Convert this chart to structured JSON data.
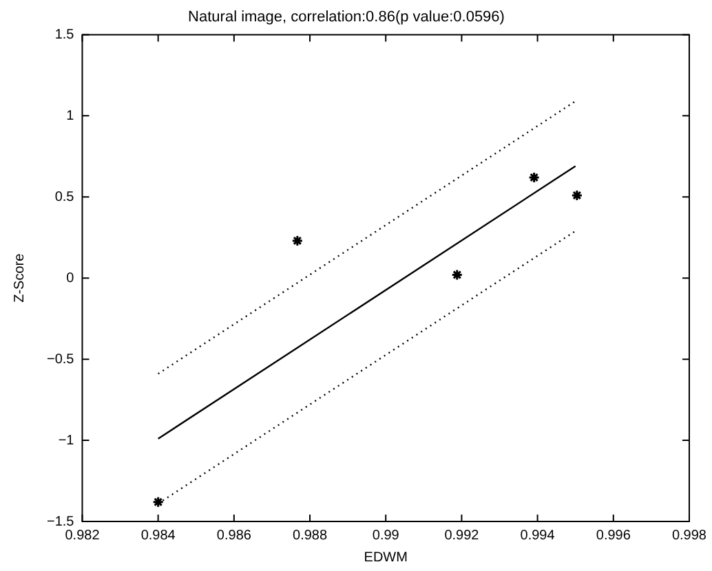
{
  "chart_data": {
    "type": "scatter",
    "title": "Natural image, correlation:0.86(p value:0.0596)",
    "xlabel": "EDWM",
    "ylabel": "Z-Score",
    "xlim": [
      0.982,
      0.998
    ],
    "xticks": [
      0.982,
      0.984,
      0.986,
      0.988,
      0.99,
      0.992,
      0.994,
      0.996,
      0.998
    ],
    "ylim": [
      -1.5,
      1.5
    ],
    "yticks": [
      {
        "value": -1.5,
        "label": "−1.5"
      },
      {
        "value": -1,
        "label": "−1"
      },
      {
        "value": -0.5,
        "label": "−0.5"
      },
      0,
      0.5,
      1,
      1.5
    ],
    "grid": false,
    "legend": false,
    "series": [
      {
        "type": "scatter",
        "color": "#000000",
        "marker": "cross",
        "x": [
          0.984,
          0.98767,
          0.99188,
          0.99391,
          0.99504
        ],
        "values": [
          -1.38,
          0.23,
          0.02,
          0.62,
          0.51
        ]
      },
      {
        "type": "line",
        "color": "#000000",
        "line_style": "solid",
        "marker": "none",
        "x": [
          0.984,
          0.995
        ],
        "values": [
          -0.99,
          0.69
        ]
      },
      {
        "type": "line",
        "color": "#000000",
        "line_style": "dotted",
        "marker": "none",
        "x": [
          0.984,
          0.995
        ],
        "values": [
          -0.59,
          1.09
        ]
      },
      {
        "type": "line",
        "color": "#000000",
        "line_style": "dotted",
        "marker": "none",
        "x": [
          0.984,
          0.995
        ],
        "values": [
          -1.39,
          0.29
        ]
      }
    ]
  }
}
